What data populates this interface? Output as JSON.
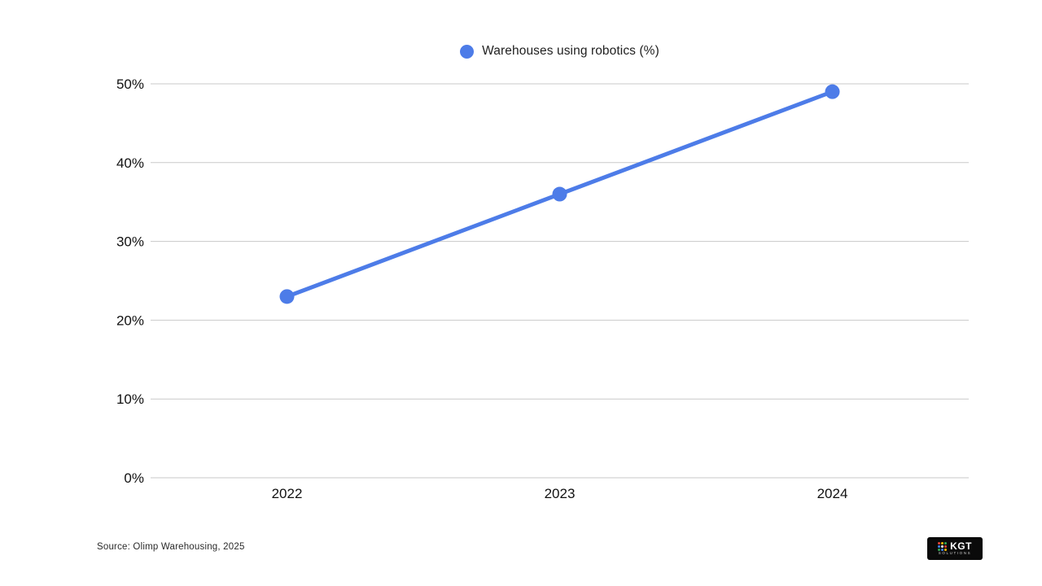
{
  "legend": {
    "label": "Warehouses using robotics (%)"
  },
  "footer": {
    "source": "Source: Olimp Warehousing, 2025"
  },
  "logo": {
    "text": "KGT",
    "subtext": "SOLUTIONS",
    "dot_colors": [
      "#e94335",
      "#fbbc05",
      "#34a853",
      "#4285f4",
      "#ffffff",
      "#e94335",
      "#34a853",
      "#4285f4",
      "#fbbc05"
    ]
  },
  "colors": {
    "line": "#4d7ce8",
    "point": "#4d7ce8",
    "grid": "#c9c9c9",
    "text": "#111111"
  },
  "chart_data": {
    "type": "line",
    "categories": [
      "2022",
      "2023",
      "2024"
    ],
    "series": [
      {
        "name": "Warehouses using robotics (%)",
        "values": [
          23,
          36,
          49
        ]
      }
    ],
    "title": "",
    "xlabel": "",
    "ylabel": "",
    "ylim": [
      0,
      50
    ],
    "yticks": [
      0,
      10,
      20,
      30,
      40,
      50
    ],
    "ytick_suffix": "%",
    "grid": true,
    "legend_position": "top-center",
    "line_width": 5,
    "point_radius": 9
  }
}
